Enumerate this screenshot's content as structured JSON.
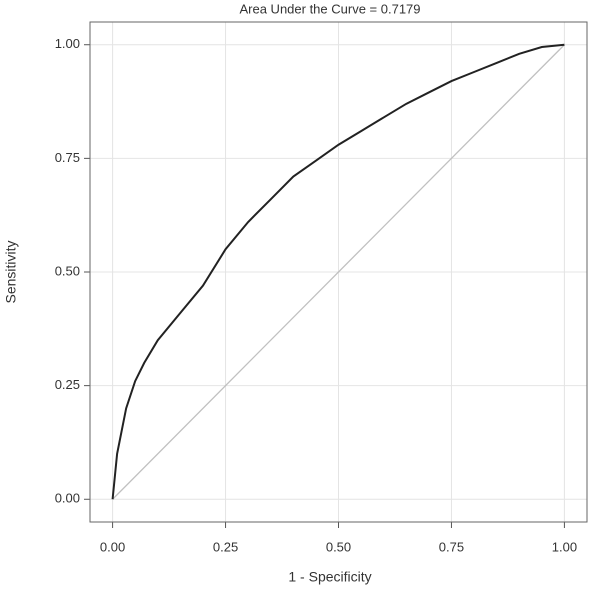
{
  "chart_data": {
    "type": "line",
    "title": "Area Under the Curve = 0.7179",
    "x_label": "1 - Specificity",
    "y_label": "Sensitivity",
    "series": [
      {
        "color": "#222222",
        "x": [
          0,
          0.005,
          0.01,
          0.02,
          0.03,
          0.05,
          0.07,
          0.1,
          0.15,
          0.2,
          0.25,
          0.3,
          0.35,
          0.4,
          0.45,
          0.5,
          0.55,
          0.6,
          0.65,
          0.7,
          0.75,
          0.8,
          0.85,
          0.9,
          0.95,
          1
        ],
        "values": [
          0,
          0.05,
          0.1,
          0.15,
          0.2,
          0.26,
          0.3,
          0.35,
          0.41,
          0.47,
          0.55,
          0.61,
          0.66,
          0.71,
          0.745,
          0.78,
          0.81,
          0.84,
          0.87,
          0.895,
          0.92,
          0.94,
          0.96,
          0.98,
          0.995,
          1
        ]
      },
      {
        "color": "#c0c0c0",
        "x": [
          0,
          1
        ],
        "values": [
          0,
          1
        ]
      }
    ],
    "xlim": [
      -0.05,
      1.05
    ],
    "ylim": [
      -0.05,
      1.05
    ],
    "xticks": [
      {
        "value": 0,
        "label": "0.00"
      },
      {
        "value": 0.25,
        "label": "0.25"
      },
      {
        "value": 0.5,
        "label": "0.50"
      },
      {
        "value": 0.75,
        "label": "0.75"
      },
      {
        "value": 1,
        "label": "1.00"
      }
    ],
    "yticks": [
      {
        "value": 0,
        "label": "0.00"
      },
      {
        "value": 0.25,
        "label": "0.25"
      },
      {
        "value": 0.5,
        "label": "0.50"
      },
      {
        "value": 0.75,
        "label": "0.75"
      },
      {
        "value": 1,
        "label": "1.00"
      }
    ],
    "grid": true
  }
}
